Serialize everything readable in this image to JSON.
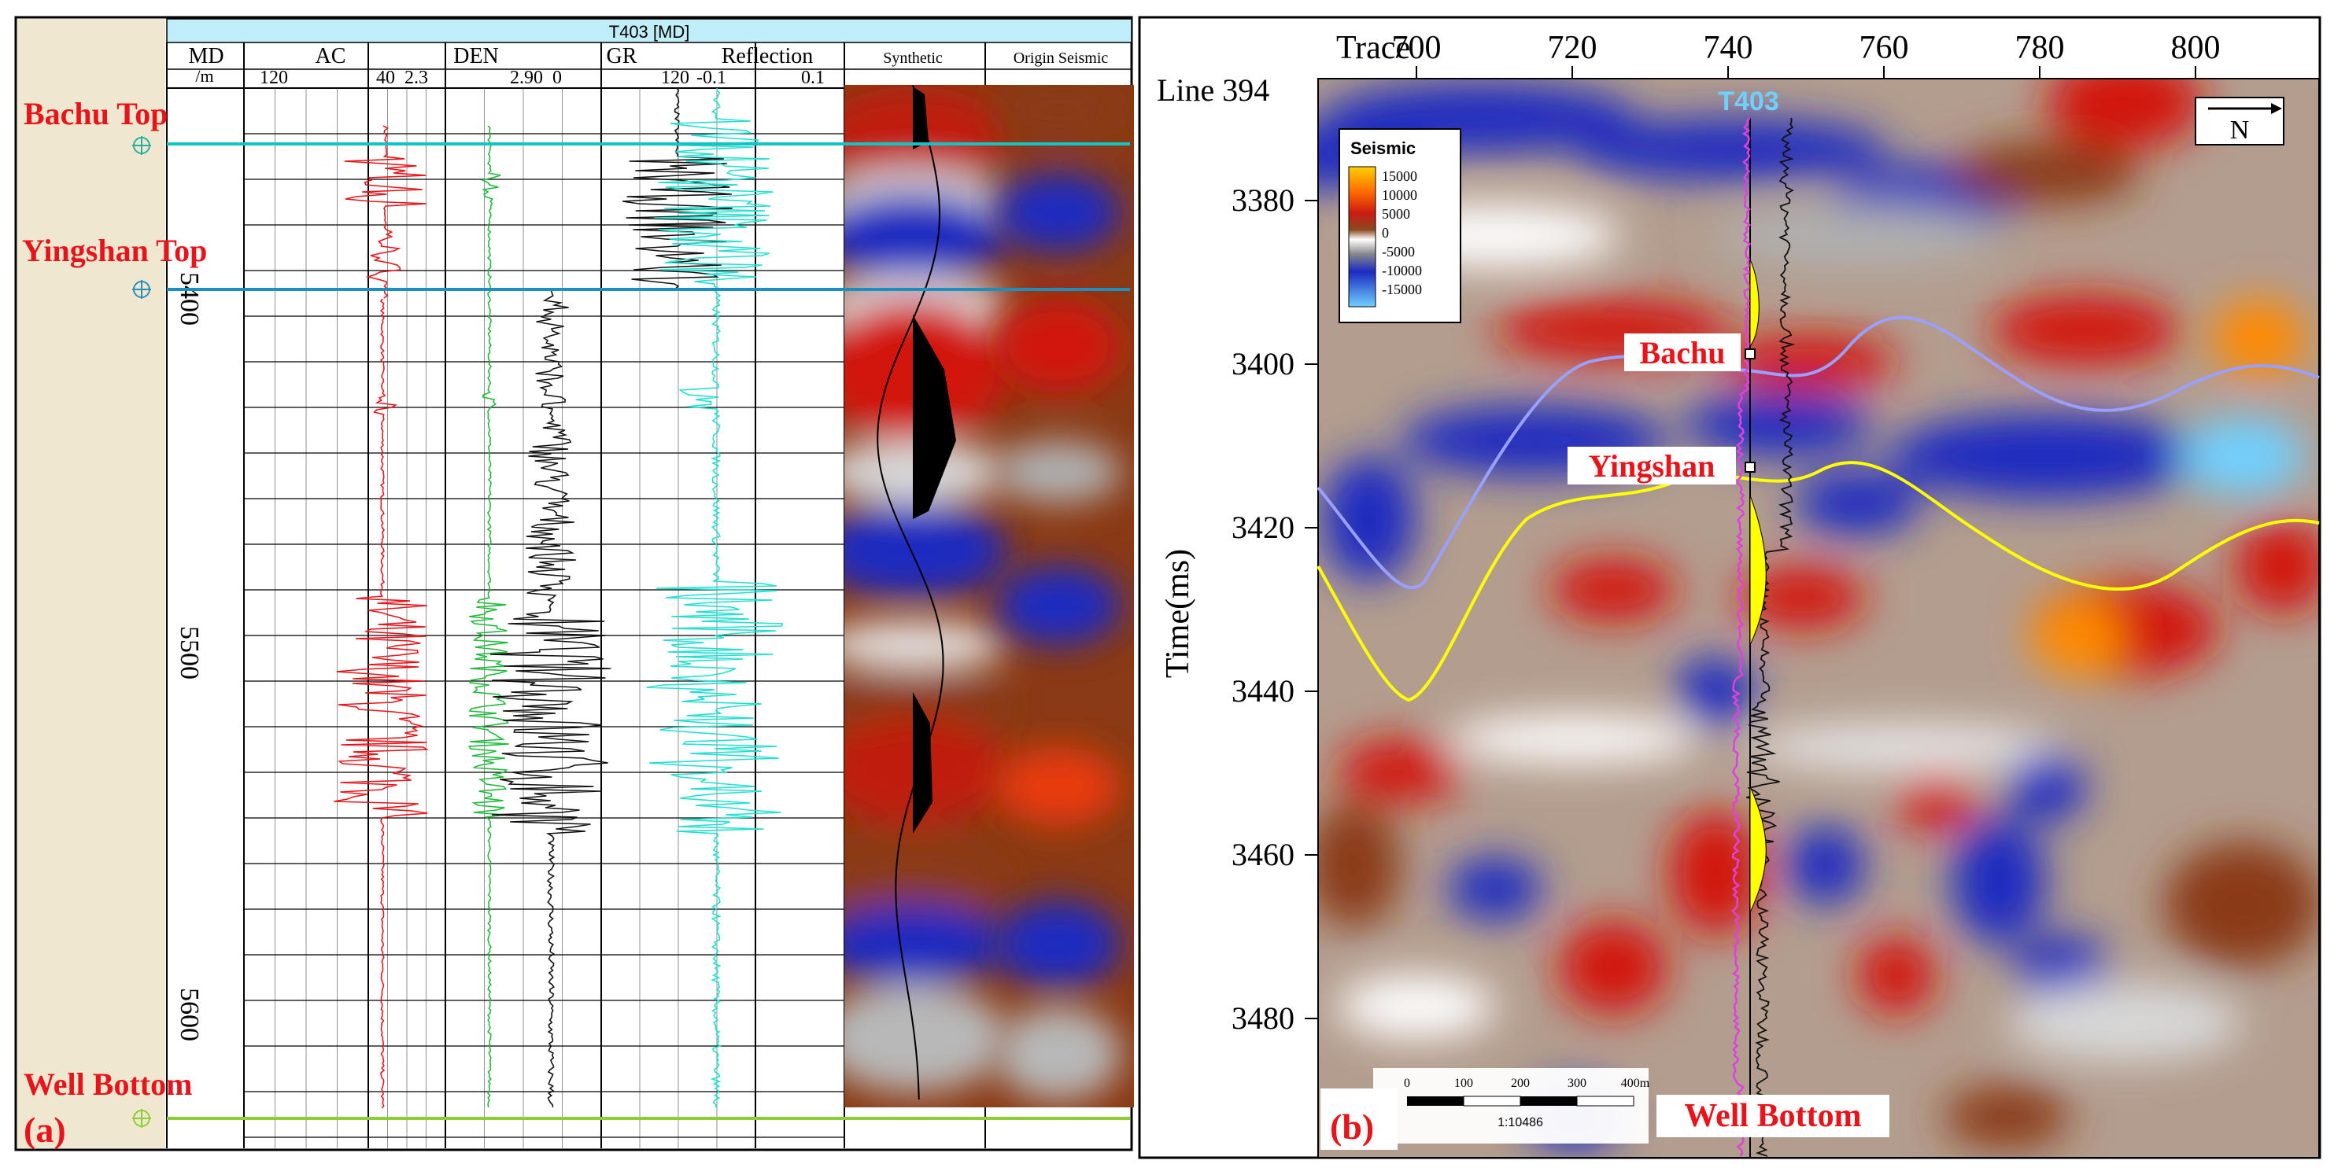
{
  "panel_a": {
    "panel_label": "(a)",
    "well_title": "T403 [MD]",
    "depth_header": "MD",
    "depth_unit": "/m",
    "depth_ticks": [
      "5400",
      "5500",
      "5600"
    ],
    "tracks": [
      {
        "name": "AC",
        "min_label": "120",
        "max_label": "40",
        "color": "#e8141b"
      },
      {
        "name": "DEN",
        "min_label": "2.3",
        "max_label": "2.90",
        "color": "#1fba3c"
      },
      {
        "name": "GR",
        "min_label": "0",
        "max_label": "120",
        "color": "#111111"
      },
      {
        "name": "Reflection",
        "min_label": "-0.1",
        "max_label": "0.1",
        "color": "#20e0d0"
      },
      {
        "name": "Synthetic"
      },
      {
        "name": "Origin Seismic"
      }
    ],
    "markers": [
      {
        "label": "Bachu Top",
        "color": "#12c4c4"
      },
      {
        "label": "Yingshan Top",
        "color": "#1a8fc0"
      },
      {
        "label": "Well Bottom",
        "color": "#8ccf30"
      }
    ]
  },
  "panel_b": {
    "panel_label": "(b)",
    "trace_label": "Trace",
    "line_label": "Line 394",
    "trace_ticks": [
      "700",
      "720",
      "740",
      "760",
      "780",
      "800"
    ],
    "time_axis_label": "Time(ms)",
    "time_ticks": [
      "3380",
      "3400",
      "3420",
      "3440",
      "3460",
      "3480"
    ],
    "well_label": "T403",
    "horizon_labels": [
      "Bachu",
      "Yingshan",
      "Well Bottom"
    ],
    "north_label": "N",
    "legend": {
      "title": "Seismic",
      "entries": [
        "15000",
        "10000",
        "5000",
        "0",
        "-5000",
        "-10000",
        "-15000"
      ]
    },
    "scale_bar": {
      "ticks": [
        "0",
        "100",
        "200",
        "300",
        "400m"
      ],
      "ratio": "1:10486"
    }
  },
  "colors": {
    "red_label": "#e8141b",
    "horizon_bachu": "#9aa0ff",
    "horizon_yingshan": "#ffff00",
    "well_curve_pink": "#e040e0"
  }
}
